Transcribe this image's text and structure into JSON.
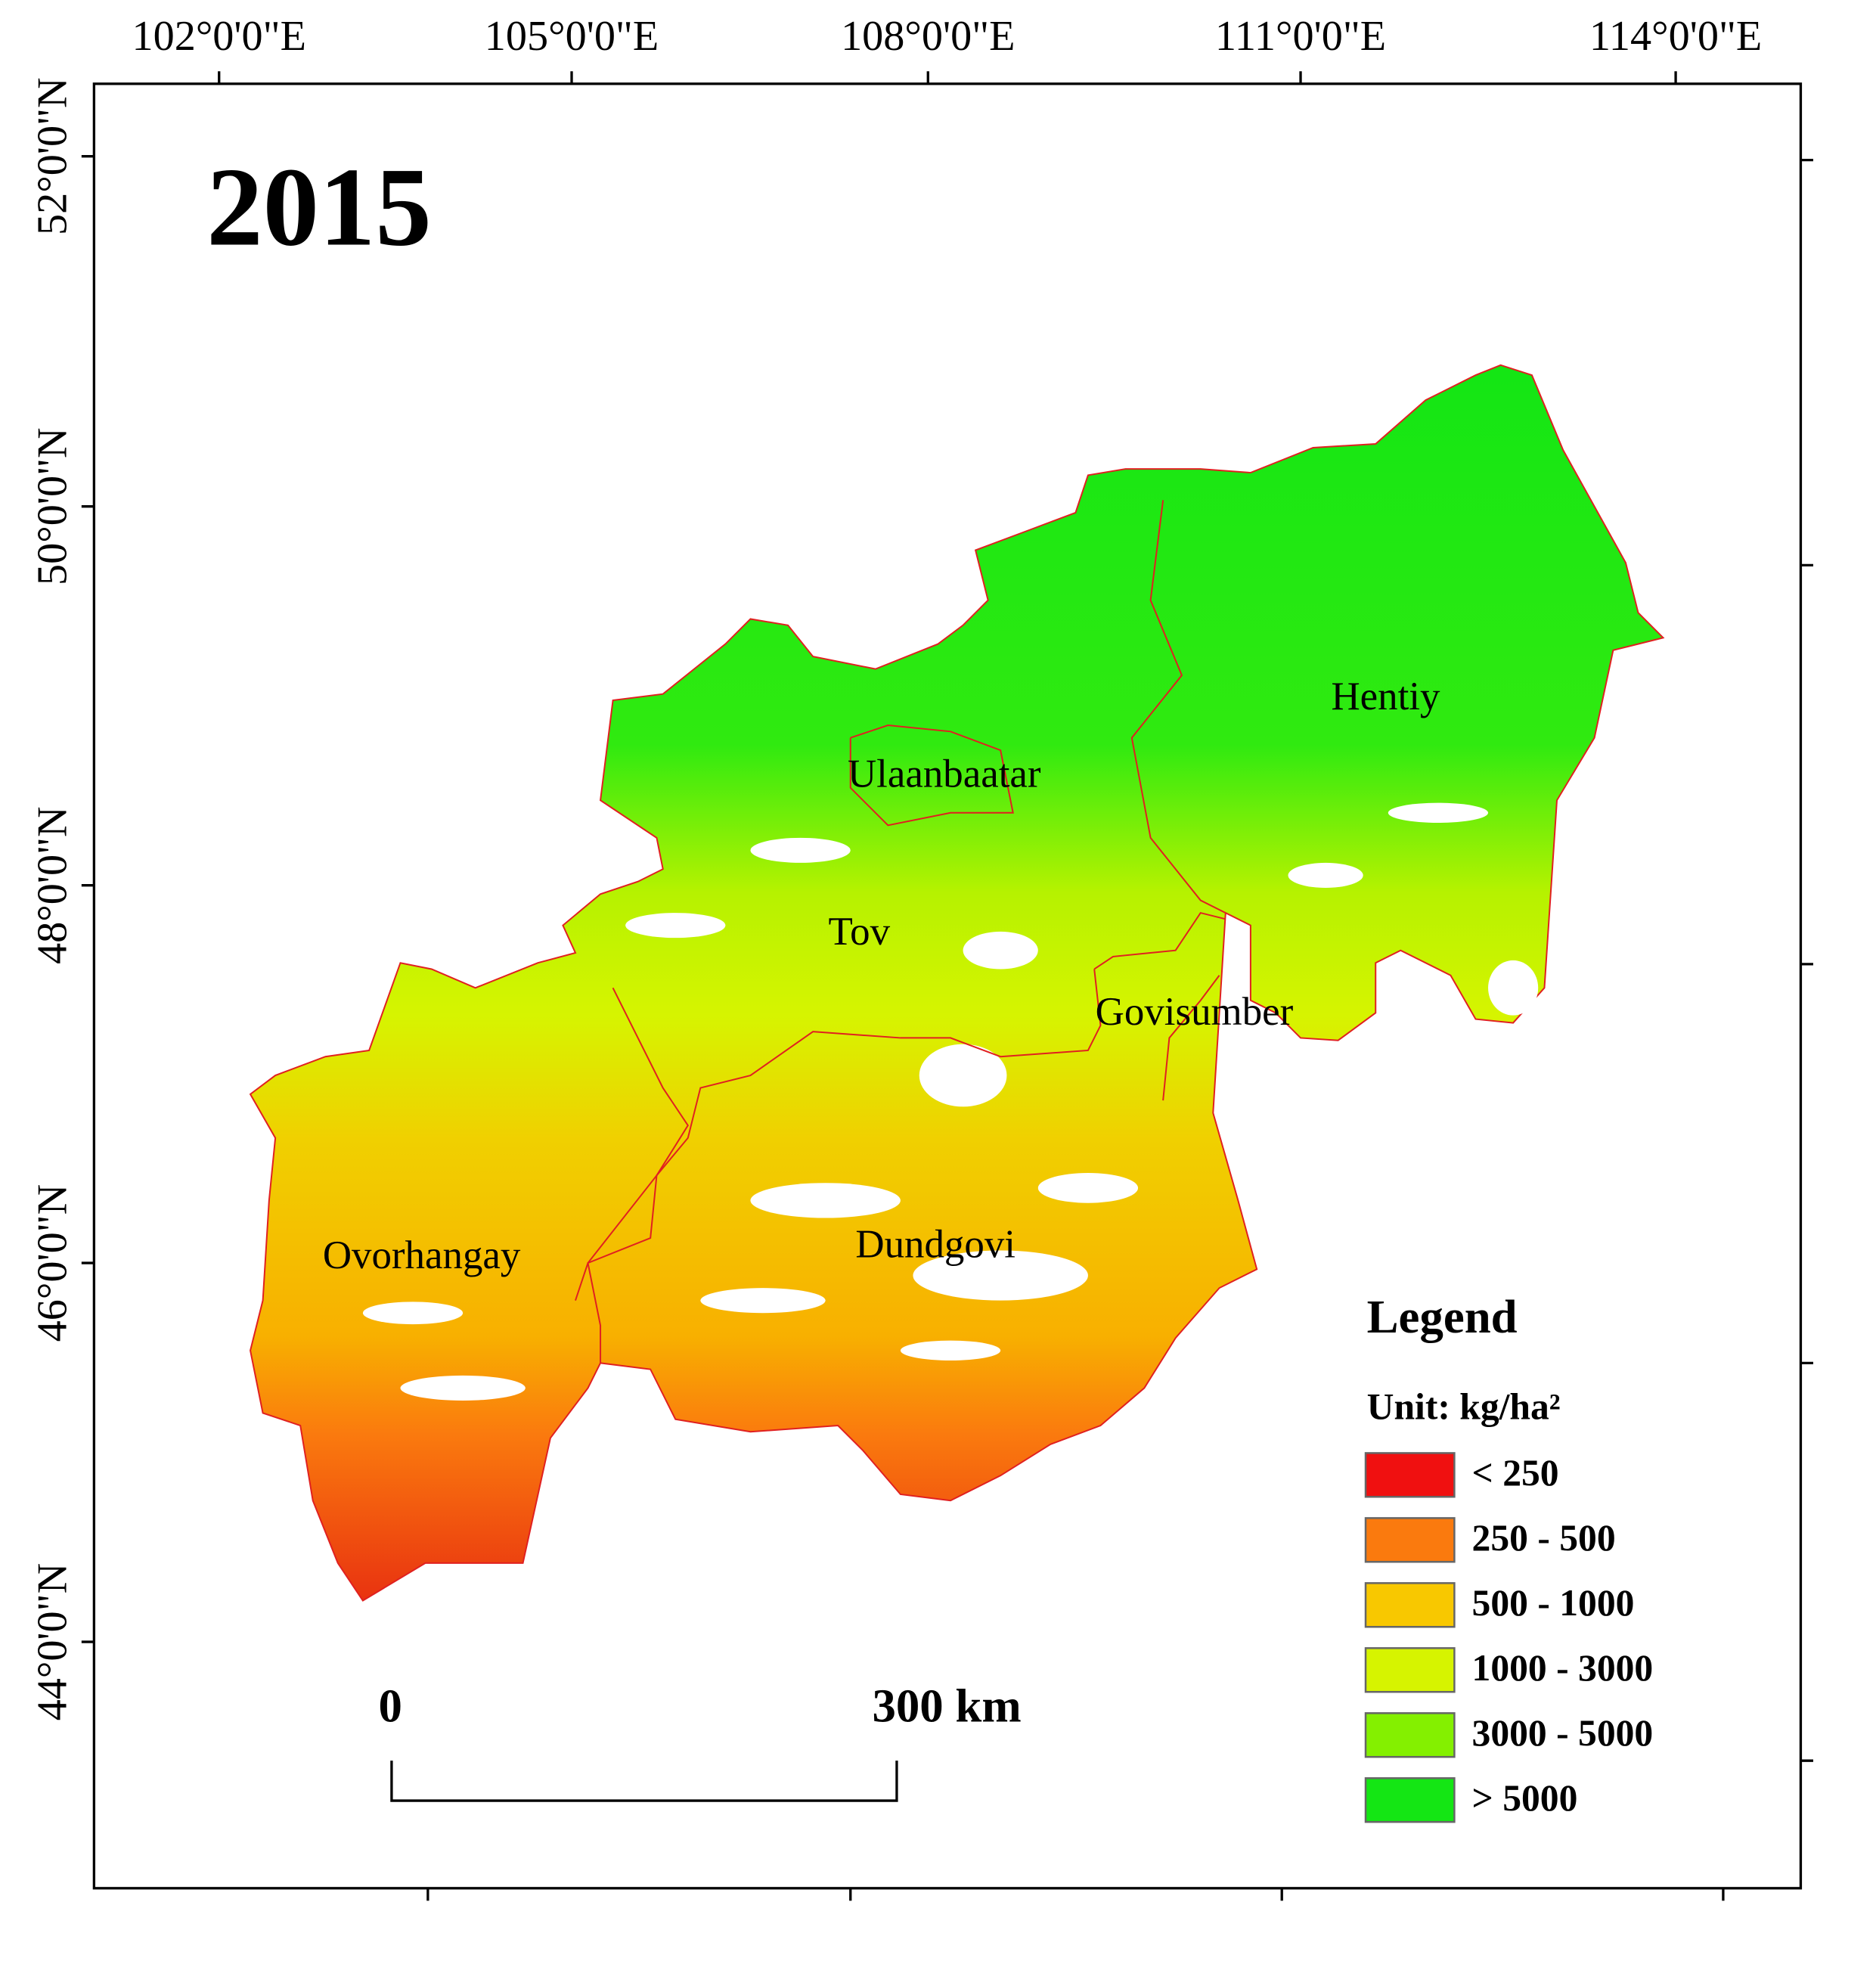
{
  "title": "2015",
  "longitude_labels": [
    "102°0'0\"E",
    "105°0'0\"E",
    "108°0'0\"E",
    "111°0'0\"E",
    "114°0'0\"E"
  ],
  "latitude_labels": [
    "52°0'0\"N",
    "50°0'0\"N",
    "48°0'0\"N",
    "46°0'0\"N",
    "44°0'0\"N"
  ],
  "regions": [
    "Hentiy",
    "Ulaanbaatar",
    "Tov",
    "Govisumber",
    "Dundgovi",
    "Ovorhangay"
  ],
  "legend": {
    "title": "Legend",
    "unit": "Unit: kg/ha²",
    "items": [
      {
        "label": "< 250",
        "color": "#f01010"
      },
      {
        "label": "250 - 500",
        "color": "#fa7a0e"
      },
      {
        "label": "500 - 1000",
        "color": "#f8c800"
      },
      {
        "label": "1000 - 3000",
        "color": "#d6f400"
      },
      {
        "label": "3000 - 5000",
        "color": "#84f000"
      },
      {
        "label": "> 5000",
        "color": "#14e614"
      }
    ]
  },
  "scale_bar": {
    "start": "0",
    "end": "300 km"
  }
}
